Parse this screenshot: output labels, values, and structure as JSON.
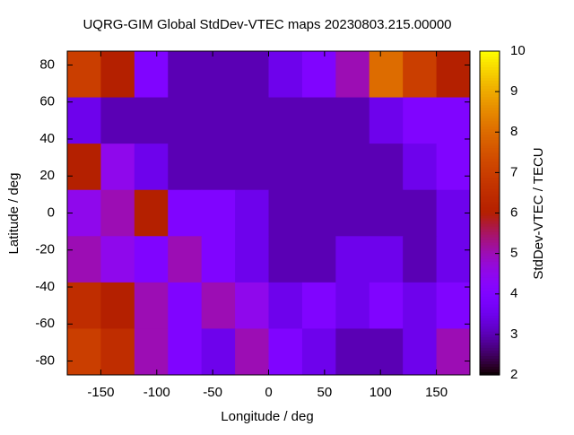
{
  "chart_data": {
    "type": "heatmap",
    "title": "UQRG-GIM Global StdDev-VTEC maps 20230803.215.00000",
    "xlabel": "Longitude / deg",
    "ylabel": "Latitude / deg",
    "colorbar_label": "StdDev-VTEC / TECU",
    "x": [
      -165,
      -135,
      -105,
      -75,
      -45,
      -15,
      15,
      45,
      75,
      105,
      135,
      165
    ],
    "y": [
      75,
      50,
      25,
      0,
      -25,
      -50,
      -75
    ],
    "values": [
      [
        7,
        6,
        4,
        3,
        3,
        3,
        3.5,
        4,
        5,
        8,
        7,
        6
      ],
      [
        3.5,
        3,
        3,
        3,
        3,
        3,
        3,
        3,
        3,
        3.5,
        4,
        4
      ],
      [
        6,
        4.5,
        3.5,
        3,
        3,
        3,
        3,
        3,
        3,
        3,
        3.5,
        4
      ],
      [
        4.5,
        5,
        6,
        4,
        4,
        3.5,
        3,
        3,
        3,
        3,
        3,
        3.5
      ],
      [
        5,
        4.5,
        4,
        5,
        4,
        3.5,
        3,
        3,
        3.5,
        3.5,
        3,
        3.5
      ],
      [
        6.5,
        6,
        5,
        4,
        5,
        4.5,
        3.5,
        4,
        3.5,
        4,
        3.5,
        4
      ],
      [
        7,
        6.5,
        5,
        4,
        3.5,
        5,
        4,
        3.5,
        3,
        3,
        3.5,
        5
      ]
    ],
    "xlim": [
      -180,
      180
    ],
    "ylim": [
      -87.5,
      87.5
    ],
    "xticks": [
      -150,
      -100,
      -50,
      0,
      50,
      100,
      150
    ],
    "yticks": [
      -80,
      -60,
      -40,
      -20,
      0,
      20,
      40,
      60,
      80
    ],
    "zlim": [
      2,
      10
    ],
    "zticks": [
      2,
      3,
      4,
      5,
      6,
      7,
      8,
      9,
      10
    ]
  }
}
